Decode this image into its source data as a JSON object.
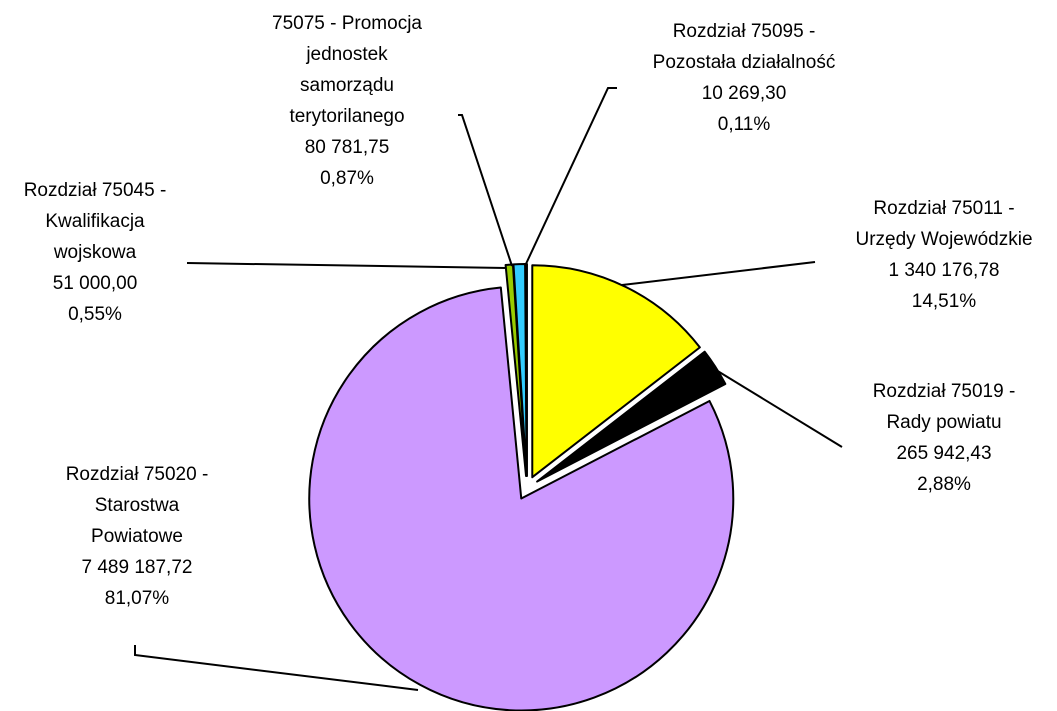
{
  "chart_data": {
    "type": "pie",
    "categories": [
      "Rozdział 75011 -\nUrzędy Wojewódzkie",
      "Rozdział 75019 -\nRady powiatu",
      "Rozdział 75020 -\nStarostwa\nPowiatowe",
      "Rozdział 75045 -\nKwalifikacja\nwojskowa",
      "75075 - Promocja\njednostek\nsamorządu\nterytorilanego",
      "Rozdział 75095 -\nPozostała działalność"
    ],
    "values": [
      1340176.78,
      265942.43,
      7489187.72,
      51000.0,
      80781.75,
      10269.3
    ],
    "value_labels": [
      "1 340 176,78",
      "265 942,43",
      "7 489 187,72",
      "51 000,00",
      "80 781,75",
      "10 269,30"
    ],
    "percents": [
      14.51,
      2.88,
      81.07,
      0.55,
      0.87,
      0.11
    ],
    "percent_labels": [
      "14,51%",
      "2,88%",
      "81,07%",
      "0,55%",
      "0,87%",
      "0,11%"
    ],
    "colors": [
      "#ffff00",
      "#000000",
      "#cc99ff",
      "#99cc00",
      "#33ccff",
      "#ffffff"
    ]
  }
}
